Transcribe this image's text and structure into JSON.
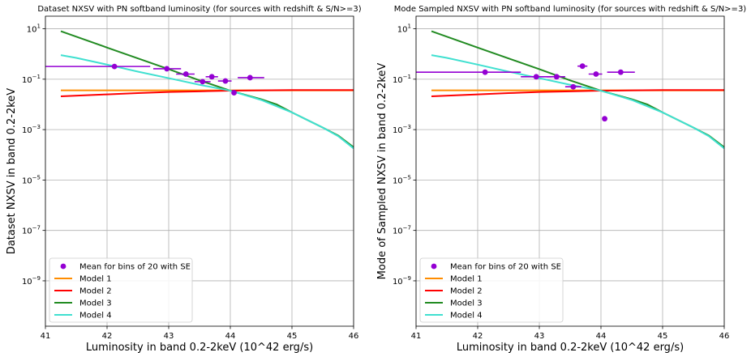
{
  "chart_data": [
    {
      "type": "scatter",
      "title": "Dataset NXSV with PN softband luminosity (for sources with redshift & S/N>=3)",
      "xlabel": "Luminosity in band 0.2-2keV (10^42 erg/s)",
      "ylabel": "Dataset NXSV in band 0.2-2keV",
      "xlim": [
        41,
        46
      ],
      "ylim_log10": [
        -10.8,
        1.5
      ],
      "yscale": "log",
      "grid": true,
      "legend_placement": "lower-left",
      "x_ticks": [
        "41",
        "42",
        "43",
        "44",
        "45",
        "46"
      ],
      "y_ticks": [
        {
          "exp": 1,
          "base": "10",
          "sup": "1"
        },
        {
          "exp": -1,
          "base": "10",
          "sup": "−1"
        },
        {
          "exp": -3,
          "base": "10",
          "sup": "−3"
        },
        {
          "exp": -5,
          "base": "10",
          "sup": "−5"
        },
        {
          "exp": -7,
          "base": "10",
          "sup": "−7"
        },
        {
          "exp": -9,
          "base": "10",
          "sup": "−9"
        }
      ],
      "points": {
        "name": "Mean for bins of 20 with SE",
        "color": "#9400d3",
        "data": [
          {
            "x": 42.12,
            "y": 0.32,
            "xerr": [
              41.0,
              42.7
            ]
          },
          {
            "x": 42.97,
            "y": 0.26,
            "xerr": [
              42.75,
              43.2
            ]
          },
          {
            "x": 43.28,
            "y": 0.16,
            "xerr": [
              43.12,
              43.42
            ]
          },
          {
            "x": 43.55,
            "y": 0.08,
            "xerr": [
              43.42,
              43.68
            ]
          },
          {
            "x": 43.7,
            "y": 0.125,
            "xerr": [
              43.6,
              43.8
            ]
          },
          {
            "x": 43.92,
            "y": 0.085,
            "xerr": [
              43.8,
              44.02
            ]
          },
          {
            "x": 44.06,
            "y": 0.029,
            "xerr": [
              44.02,
              44.1
            ]
          },
          {
            "x": 44.32,
            "y": 0.115,
            "xerr": [
              44.12,
              44.55
            ]
          }
        ]
      },
      "series": [
        {
          "name": "Model 1",
          "color": "#ff8c00",
          "x": [
            41.25,
            42,
            43,
            44,
            45,
            46
          ],
          "y": [
            0.036,
            0.036,
            0.036,
            0.036,
            0.036,
            0.036
          ]
        },
        {
          "name": "Model 2",
          "color": "#ff0000",
          "x": [
            41.25,
            42,
            42.5,
            43,
            43.5,
            44,
            44.5,
            45,
            46
          ],
          "y": [
            0.021,
            0.025,
            0.028,
            0.031,
            0.033,
            0.035,
            0.036,
            0.037,
            0.037
          ]
        },
        {
          "name": "Model 3",
          "color": "#228b22",
          "x": [
            41.25,
            42,
            43,
            43.5,
            44,
            44.5,
            44.75,
            45,
            45.5,
            45.75,
            46
          ],
          "y": [
            8.0,
            1.8,
            0.25,
            0.09,
            0.035,
            0.016,
            0.01,
            0.0048,
            0.0012,
            0.00058,
            0.0002
          ]
        },
        {
          "name": "Model 4",
          "color": "#40e0d0",
          "x": [
            41.25,
            41.5,
            42,
            42.5,
            43,
            43.5,
            44,
            44.5,
            45,
            45.5,
            45.75,
            46
          ],
          "y": [
            0.9,
            0.7,
            0.38,
            0.2,
            0.11,
            0.06,
            0.035,
            0.015,
            0.0048,
            0.0012,
            0.00055,
            0.00018
          ]
        }
      ]
    },
    {
      "type": "scatter",
      "title": "Mode Sampled NXSV with PN softband luminosity (for sources with redshift & S/N>=3)",
      "xlabel": "Luminosity in band 0.2-2keV (10^42 erg/s)",
      "ylabel": "Mode of Sampled NXSV in band 0.2-2keV",
      "xlim": [
        41,
        46
      ],
      "ylim_log10": [
        -10.8,
        1.5
      ],
      "yscale": "log",
      "grid": true,
      "legend_placement": "lower-left",
      "x_ticks": [
        "41",
        "42",
        "43",
        "44",
        "45",
        "46"
      ],
      "y_ticks": [
        {
          "exp": 1,
          "base": "10",
          "sup": "1"
        },
        {
          "exp": -1,
          "base": "10",
          "sup": "−1"
        },
        {
          "exp": -3,
          "base": "10",
          "sup": "−3"
        },
        {
          "exp": -5,
          "base": "10",
          "sup": "−5"
        },
        {
          "exp": -7,
          "base": "10",
          "sup": "−7"
        },
        {
          "exp": -9,
          "base": "10",
          "sup": "−9"
        }
      ],
      "points": {
        "name": "Mean for bins of 20 with SE",
        "color": "#9400d3",
        "data": [
          {
            "x": 42.12,
            "y": 0.19,
            "xerr": [
              41.0,
              42.7
            ]
          },
          {
            "x": 42.95,
            "y": 0.125,
            "xerr": [
              42.7,
              43.2
            ]
          },
          {
            "x": 43.28,
            "y": 0.125,
            "xerr": [
              43.12,
              43.42
            ]
          },
          {
            "x": 43.55,
            "y": 0.05,
            "xerr": [
              43.42,
              43.68
            ]
          },
          {
            "x": 43.7,
            "y": 0.33,
            "xerr": [
              43.62,
              43.78
            ]
          },
          {
            "x": 43.92,
            "y": 0.16,
            "xerr": [
              43.8,
              44.02
            ]
          },
          {
            "x": 44.06,
            "y": 0.0027,
            "xerr": [
              44.02,
              44.09
            ]
          },
          {
            "x": 44.32,
            "y": 0.19,
            "xerr": [
              44.1,
              44.55
            ]
          }
        ]
      },
      "series": [
        {
          "name": "Model 1",
          "color": "#ff8c00",
          "x": [
            41.25,
            42,
            43,
            44,
            45,
            46
          ],
          "y": [
            0.036,
            0.036,
            0.036,
            0.036,
            0.036,
            0.036
          ]
        },
        {
          "name": "Model 2",
          "color": "#ff0000",
          "x": [
            41.25,
            42,
            42.5,
            43,
            43.5,
            44,
            44.5,
            45,
            46
          ],
          "y": [
            0.021,
            0.025,
            0.028,
            0.031,
            0.033,
            0.035,
            0.036,
            0.037,
            0.037
          ]
        },
        {
          "name": "Model 3",
          "color": "#228b22",
          "x": [
            41.25,
            42,
            43,
            43.5,
            44,
            44.5,
            44.75,
            45,
            45.5,
            45.75,
            46
          ],
          "y": [
            8.0,
            1.8,
            0.25,
            0.09,
            0.035,
            0.016,
            0.01,
            0.0048,
            0.0012,
            0.00058,
            0.0002
          ]
        },
        {
          "name": "Model 4",
          "color": "#40e0d0",
          "x": [
            41.25,
            41.5,
            42,
            42.5,
            43,
            43.5,
            44,
            44.5,
            45,
            45.5,
            45.75,
            46
          ],
          "y": [
            0.9,
            0.7,
            0.38,
            0.2,
            0.11,
            0.06,
            0.035,
            0.015,
            0.0048,
            0.0012,
            0.00055,
            0.00018
          ]
        }
      ]
    }
  ]
}
